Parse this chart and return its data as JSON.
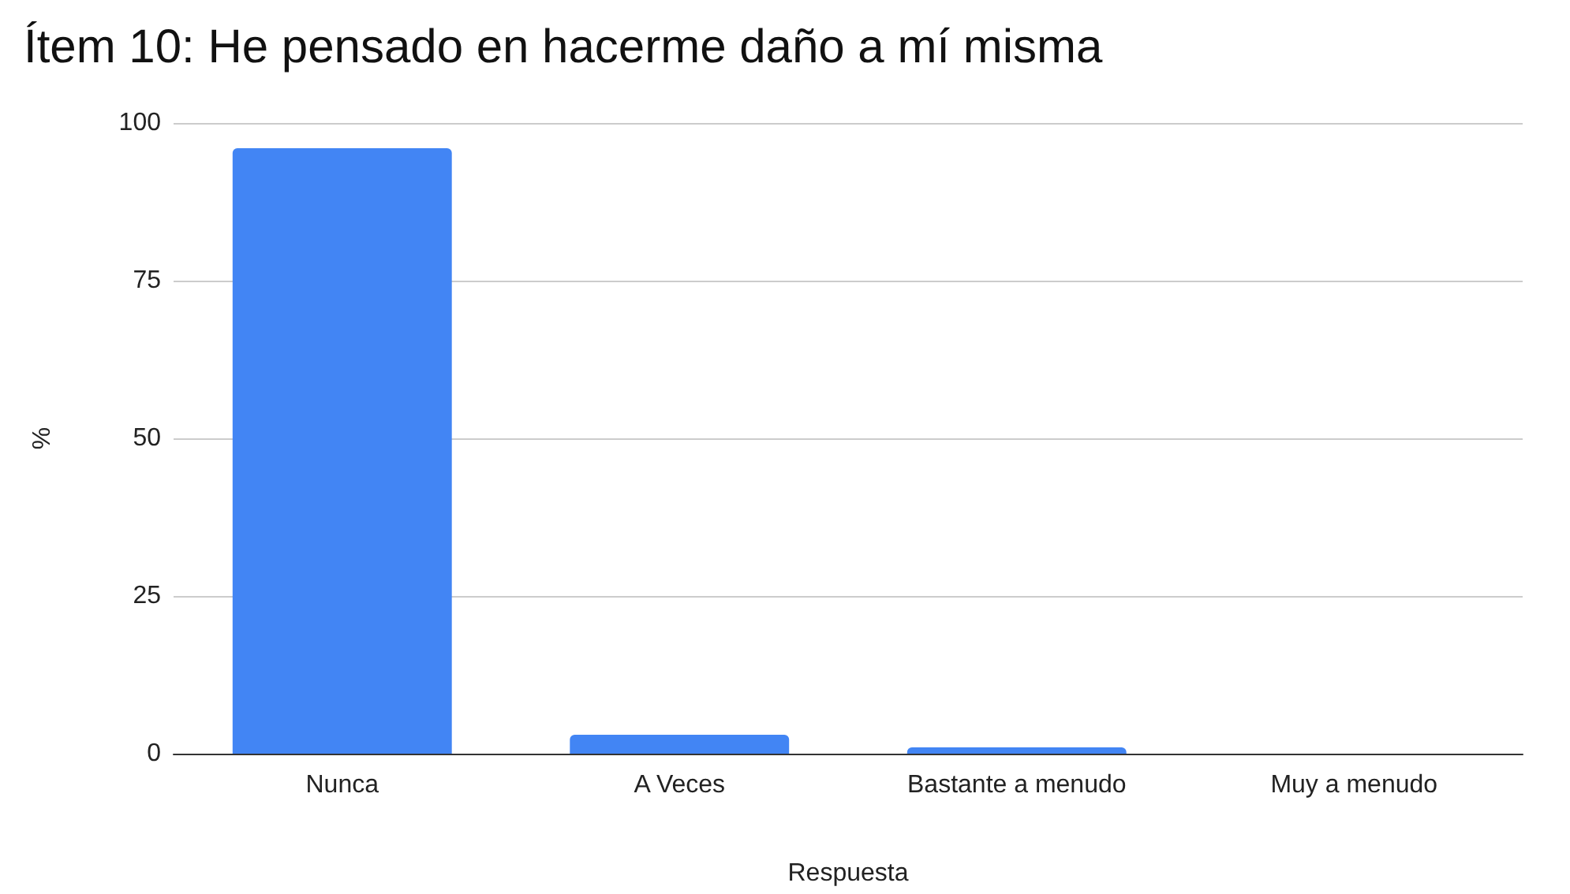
{
  "chart_data": {
    "type": "bar",
    "title": "Ítem 10: He pensado en hacerme daño a mí misma",
    "xlabel": "Respuesta",
    "ylabel": "%",
    "categories": [
      "Nunca",
      "A Veces",
      "Bastante a menudo",
      "Muy a menudo"
    ],
    "values": [
      96,
      3,
      1,
      0
    ],
    "color": "#4285f4",
    "ylim": [
      0,
      100
    ],
    "yticks": [
      0,
      25,
      50,
      75,
      100
    ],
    "grid": "y"
  }
}
